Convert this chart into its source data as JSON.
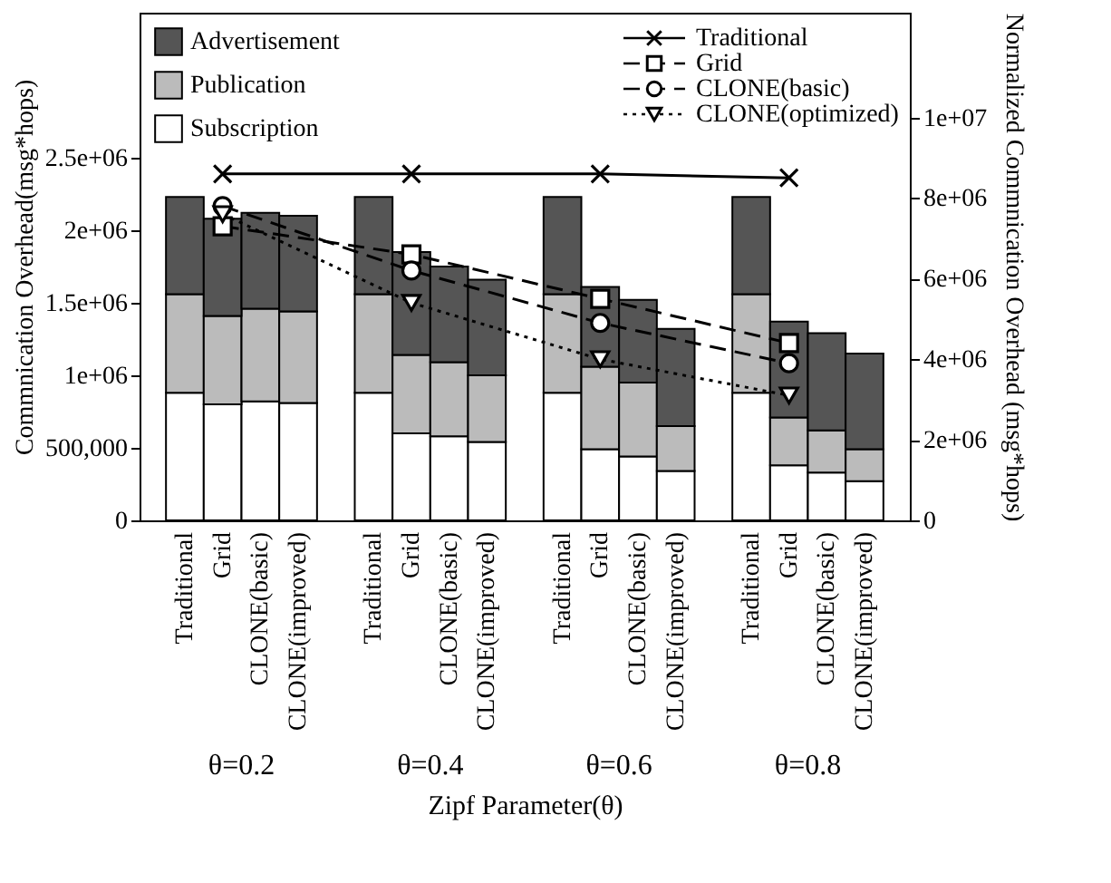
{
  "chart_data": {
    "type": "bar",
    "stacked": true,
    "xlabel": "Zipf Parameter(θ)",
    "ylabel": "Commnication Overhead(msg*hops)",
    "y2label": "Normalized Commnication Overhead (msg*hops)",
    "categories": [
      "Traditional",
      "Grid",
      "CLONE(basic)",
      "CLONE(improved)",
      null,
      "Traditional",
      "Grid",
      "CLONE(basic)",
      "CLONE(improved)",
      null,
      "Traditional",
      "Grid",
      "CLONE(basic)",
      "CLONE(improved)",
      null,
      "Traditional",
      "Grid",
      "CLONE(basic)",
      "CLONE(improved)"
    ],
    "series": [
      {
        "name": "Subscription",
        "color": "#ffffff",
        "values": [
          880000,
          800000,
          820000,
          810000,
          null,
          880000,
          600000,
          580000,
          540000,
          null,
          880000,
          490000,
          440000,
          340000,
          null,
          880000,
          380000,
          330000,
          270000
        ]
      },
      {
        "name": "Publication",
        "color": "#bbbbbb",
        "values": [
          680000,
          610000,
          640000,
          630000,
          null,
          680000,
          540000,
          510000,
          460000,
          null,
          680000,
          570000,
          510000,
          310000,
          null,
          680000,
          330000,
          290000,
          220000
        ]
      },
      {
        "name": "Advertisement",
        "color": "#555555",
        "values": [
          670000,
          670000,
          660000,
          660000,
          null,
          670000,
          710000,
          660000,
          660000,
          null,
          670000,
          550000,
          570000,
          670000,
          null,
          670000,
          660000,
          670000,
          660000
        ]
      },
      {
        "name": "Traditional",
        "type": "line",
        "axis": "y2",
        "color": "#000000",
        "marker": "cross",
        "line_style": "solid",
        "values": [
          null,
          8600000,
          null,
          null,
          null,
          null,
          8600000,
          null,
          null,
          null,
          null,
          8600000,
          null,
          null,
          null,
          null,
          8500000,
          null,
          null
        ]
      },
      {
        "name": "Grid",
        "type": "line",
        "axis": "y2",
        "color": "#000000",
        "marker": "square",
        "line_style": "dashed",
        "values": [
          null,
          7300000,
          null,
          null,
          null,
          null,
          6600000,
          null,
          null,
          null,
          null,
          5500000,
          null,
          null,
          null,
          null,
          4400000,
          null,
          null
        ]
      },
      {
        "name": "CLONE(basic)",
        "type": "line",
        "axis": "y2",
        "color": "#000000",
        "marker": "circle",
        "line_style": "dashed",
        "values": [
          null,
          7800000,
          null,
          null,
          null,
          null,
          6200000,
          null,
          null,
          null,
          null,
          4900000,
          null,
          null,
          null,
          null,
          3900000,
          null,
          null
        ]
      },
      {
        "name": "CLONE(optimized)",
        "type": "line",
        "axis": "y2",
        "color": "#000000",
        "marker": "triangle",
        "line_style": "dotted",
        "values": [
          null,
          7600000,
          null,
          null,
          null,
          null,
          5400000,
          null,
          null,
          null,
          null,
          4000000,
          null,
          null,
          null,
          null,
          3100000,
          null,
          null
        ]
      }
    ],
    "ylim": [
      0,
      3500000
    ],
    "yticks": [
      0,
      {
        "value": 500000,
        "label": "500,000"
      },
      {
        "value": 1000000,
        "label": "1e+06"
      },
      {
        "value": 1500000,
        "label": "1.5e+06"
      },
      {
        "value": 2000000,
        "label": "2e+06"
      },
      {
        "value": 2500000,
        "label": "2.5e+06"
      }
    ],
    "y2lim": [
      0,
      12600000
    ],
    "y2ticks": [
      0,
      {
        "value": 2000000,
        "label": "2e+06"
      },
      {
        "value": 4000000,
        "label": "4e+06"
      },
      {
        "value": 6000000,
        "label": "6e+06"
      },
      {
        "value": 8000000,
        "label": "8e+06"
      },
      {
        "value": 10000000,
        "label": "1e+07"
      }
    ],
    "annotations": [
      "θ=0.2",
      "θ=0.4",
      "θ=0.6",
      "θ=0.8"
    ],
    "grid": false,
    "legend": "top"
  }
}
